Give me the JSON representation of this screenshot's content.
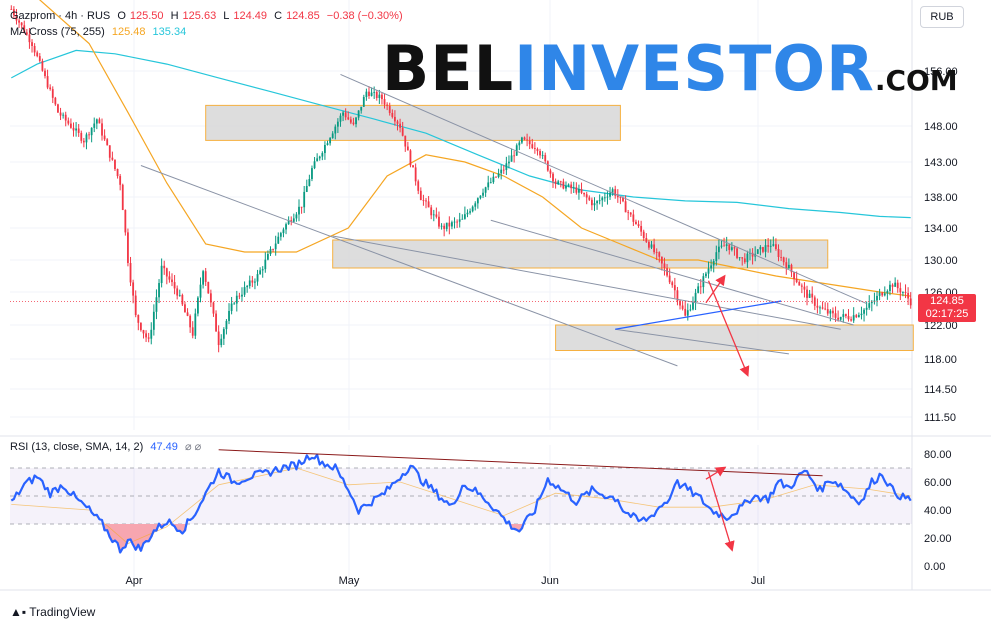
{
  "legend": {
    "symbol": "Gazprom · 4h · RUS",
    "open_label": "O",
    "open": "125.50",
    "high_label": "H",
    "high": "125.63",
    "low_label": "L",
    "low": "124.49",
    "close_label": "C",
    "close": "124.85",
    "change": "−0.38 (−0.30%)",
    "ma_label": "MA Cross (75, 255)",
    "ma_fast": "125.48",
    "ma_slow": "135.34",
    "rsi_label": "RSI (13, close, SMA, 14, 2)",
    "rsi_value": "47.49",
    "icons": "⌀ ⌀"
  },
  "currency": "RUB",
  "last_price": {
    "value": "124.85",
    "countdown": "02:17:25"
  },
  "logo": {
    "part1": "BEL",
    "part2": "INVESTOR",
    "part3": ".COM"
  },
  "footer": "TradingView",
  "colors": {
    "up": "#089981",
    "down": "#f23645",
    "ma_fast": "#f5a623",
    "ma_slow": "#26c6da",
    "rsi": "#2962ff",
    "zone_fill": "#d9d9d9",
    "zone_border": "#f5b041",
    "arrow": "#f23645"
  },
  "chart_data": [
    {
      "type": "candlestick",
      "title": "Gazprom · 4h · RUS",
      "price_axis_labels": [
        "156.00",
        "148.00",
        "143.00",
        "138.00",
        "134.00",
        "130.00",
        "126.00",
        "122.00",
        "118.00",
        "114.50",
        "111.50"
      ],
      "time_axis_labels": [
        "Apr",
        "May",
        "Jun",
        "Jul"
      ],
      "price_anchors": [
        [
          0,
          165
        ],
        [
          8,
          160
        ],
        [
          18,
          150
        ],
        [
          28,
          146
        ],
        [
          33,
          149
        ],
        [
          42,
          140
        ],
        [
          45,
          130
        ],
        [
          48,
          123
        ],
        [
          53,
          120
        ],
        [
          58,
          129
        ],
        [
          64,
          126
        ],
        [
          70,
          121
        ],
        [
          74,
          129
        ],
        [
          80,
          120
        ],
        [
          86,
          125
        ],
        [
          95,
          128
        ],
        [
          105,
          134
        ],
        [
          112,
          137
        ],
        [
          116,
          142
        ],
        [
          122,
          146
        ],
        [
          128,
          150
        ],
        [
          132,
          148
        ],
        [
          137,
          153
        ],
        [
          143,
          152
        ],
        [
          150,
          148
        ],
        [
          158,
          138
        ],
        [
          166,
          134
        ],
        [
          174,
          135
        ],
        [
          182,
          139
        ],
        [
          190,
          142
        ],
        [
          197,
          146
        ],
        [
          203,
          145
        ],
        [
          210,
          140
        ],
        [
          218,
          139
        ],
        [
          225,
          137
        ],
        [
          232,
          139
        ],
        [
          238,
          136
        ],
        [
          244,
          133
        ],
        [
          250,
          130
        ],
        [
          255,
          127
        ],
        [
          260,
          123
        ],
        [
          266,
          127
        ],
        [
          272,
          131
        ],
        [
          276,
          132
        ],
        [
          282,
          130
        ],
        [
          288,
          131
        ],
        [
          293,
          132
        ],
        [
          300,
          129
        ],
        [
          306,
          126
        ],
        [
          312,
          124
        ],
        [
          318,
          123
        ],
        [
          324,
          123
        ],
        [
          330,
          124
        ],
        [
          336,
          126
        ],
        [
          340,
          127
        ],
        [
          344,
          126
        ],
        [
          347,
          124.85
        ]
      ],
      "ma_fast_points": [
        [
          0,
          170
        ],
        [
          30,
          160
        ],
        [
          45,
          150
        ],
        [
          60,
          140
        ],
        [
          75,
          132
        ],
        [
          90,
          131
        ],
        [
          110,
          131
        ],
        [
          130,
          134
        ],
        [
          145,
          141
        ],
        [
          160,
          144
        ],
        [
          175,
          143
        ],
        [
          190,
          141
        ],
        [
          205,
          138
        ],
        [
          220,
          134
        ],
        [
          235,
          132
        ],
        [
          250,
          130
        ],
        [
          265,
          130
        ],
        [
          280,
          129
        ],
        [
          295,
          128
        ],
        [
          315,
          127
        ],
        [
          335,
          126
        ],
        [
          347,
          125.5
        ]
      ],
      "ma_slow_points": [
        [
          0,
          155
        ],
        [
          10,
          157
        ],
        [
          25,
          159
        ],
        [
          40,
          158.5
        ],
        [
          60,
          157
        ],
        [
          80,
          155
        ],
        [
          100,
          153
        ],
        [
          120,
          151
        ],
        [
          140,
          149
        ],
        [
          160,
          147
        ],
        [
          180,
          144
        ],
        [
          200,
          141
        ],
        [
          220,
          139
        ],
        [
          240,
          138
        ],
        [
          260,
          137.5
        ],
        [
          280,
          137.3
        ],
        [
          300,
          136.5
        ],
        [
          320,
          136
        ],
        [
          335,
          135.5
        ],
        [
          347,
          135.34
        ]
      ],
      "zones": [
        {
          "from_bar": 75,
          "to_bar": 235,
          "low": 146,
          "high": 151
        },
        {
          "from_bar": 124,
          "to_bar": 315,
          "low": 129,
          "high": 132.5
        },
        {
          "from_bar": 210,
          "to_bar": 348,
          "low": 119,
          "high": 122
        }
      ],
      "trendlines": [
        {
          "x1": 127,
          "y1": 155.5,
          "x2": 330,
          "y2": 124.6
        },
        {
          "x1": 124,
          "y1": 133,
          "x2": 320,
          "y2": 121.5
        },
        {
          "x1": 50,
          "y1": 142.5,
          "x2": 257,
          "y2": 117.2
        },
        {
          "x1": 185,
          "y1": 135,
          "x2": 325,
          "y2": 122
        },
        {
          "x1": 233,
          "y1": 121.5,
          "x2": 300,
          "y2": 118.6
        },
        {
          "x1": 233,
          "y1": 121.5,
          "x2": 297,
          "y2": 124.9
        }
      ],
      "arrows": [
        {
          "x1": 268,
          "y1": 124.7,
          "x2": 275,
          "y2": 127.9
        },
        {
          "x1": 269,
          "y1": 127.4,
          "x2": 284,
          "y2": 116.2
        }
      ]
    },
    {
      "type": "line",
      "title": "RSI (13, close, SMA, 14, 2)",
      "y_axis_labels": [
        "80.00",
        "60.00",
        "40.00",
        "20.00",
        "0.00"
      ],
      "overbought": 70,
      "oversold": 30,
      "mid": 50,
      "rsi_anchors": [
        [
          0,
          45
        ],
        [
          5,
          58
        ],
        [
          10,
          64
        ],
        [
          15,
          52
        ],
        [
          20,
          58
        ],
        [
          25,
          48
        ],
        [
          30,
          40
        ],
        [
          35,
          30
        ],
        [
          38,
          22
        ],
        [
          42,
          12
        ],
        [
          45,
          18
        ],
        [
          50,
          12
        ],
        [
          55,
          25
        ],
        [
          60,
          32
        ],
        [
          66,
          26
        ],
        [
          70,
          35
        ],
        [
          76,
          55
        ],
        [
          80,
          68
        ],
        [
          86,
          60
        ],
        [
          92,
          64
        ],
        [
          98,
          66
        ],
        [
          104,
          70
        ],
        [
          110,
          72
        ],
        [
          116,
          80
        ],
        [
          120,
          74
        ],
        [
          125,
          70
        ],
        [
          130,
          55
        ],
        [
          134,
          40
        ],
        [
          138,
          45
        ],
        [
          144,
          52
        ],
        [
          150,
          64
        ],
        [
          154,
          72
        ],
        [
          158,
          62
        ],
        [
          164,
          52
        ],
        [
          170,
          42
        ],
        [
          174,
          58
        ],
        [
          178,
          55
        ],
        [
          184,
          46
        ],
        [
          188,
          38
        ],
        [
          192,
          30
        ],
        [
          196,
          25
        ],
        [
          202,
          40
        ],
        [
          207,
          62
        ],
        [
          212,
          55
        ],
        [
          218,
          46
        ],
        [
          224,
          54
        ],
        [
          230,
          50
        ],
        [
          234,
          48
        ],
        [
          236,
          40
        ],
        [
          242,
          32
        ],
        [
          246,
          34
        ],
        [
          250,
          42
        ],
        [
          254,
          48
        ],
        [
          256,
          60
        ],
        [
          260,
          56
        ],
        [
          266,
          48
        ],
        [
          270,
          40
        ],
        [
          276,
          35
        ],
        [
          282,
          42
        ],
        [
          286,
          50
        ],
        [
          292,
          48
        ],
        [
          296,
          60
        ],
        [
          300,
          56
        ],
        [
          306,
          68
        ],
        [
          308,
          64
        ],
        [
          312,
          54
        ],
        [
          316,
          62
        ],
        [
          320,
          58
        ],
        [
          324,
          50
        ],
        [
          328,
          46
        ],
        [
          332,
          60
        ],
        [
          336,
          66
        ],
        [
          340,
          54
        ],
        [
          344,
          49
        ],
        [
          347,
          47.49
        ]
      ],
      "rsi_ma_anchors": [
        [
          0,
          44
        ],
        [
          30,
          40
        ],
        [
          45,
          16
        ],
        [
          60,
          28
        ],
        [
          80,
          58
        ],
        [
          110,
          70
        ],
        [
          130,
          58
        ],
        [
          150,
          60
        ],
        [
          170,
          48
        ],
        [
          190,
          36
        ],
        [
          210,
          52
        ],
        [
          230,
          48
        ],
        [
          250,
          42
        ],
        [
          270,
          42
        ],
        [
          290,
          47
        ],
        [
          310,
          58
        ],
        [
          330,
          55
        ],
        [
          347,
          50
        ]
      ],
      "trendline": {
        "x1": 80,
        "y1": 83,
        "x2": 313,
        "y2": 64.5
      },
      "arrows": [
        {
          "x1": 268,
          "y1": 62,
          "x2": 275,
          "y2": 70
        },
        {
          "x1": 269,
          "y1": 67,
          "x2": 278,
          "y2": 12
        }
      ]
    }
  ]
}
